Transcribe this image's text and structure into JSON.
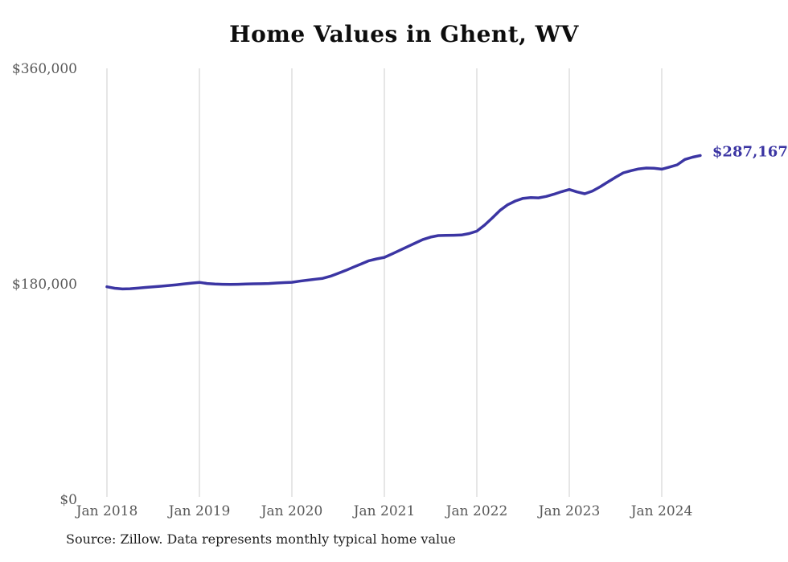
{
  "chart_data": {
    "type": "line",
    "title": "Home Values in Ghent, WV",
    "source_note": "Source: Zillow. Data represents monthly typical home value",
    "end_label": "$287,167",
    "end_value": 287167,
    "ylim": [
      0,
      360000
    ],
    "grid": "vertical-only",
    "legend": "none",
    "colors": {
      "line": "#3b35a3",
      "end_label": "#3b35a3",
      "grid": "#cccccc",
      "axis_labels": "#595959",
      "title": "#0d0d0d",
      "source": "#1f1f1f",
      "background": "#ffffff"
    },
    "y_ticks": [
      {
        "label": "$0",
        "value": 0
      },
      {
        "label": "$180,000",
        "value": 180000
      },
      {
        "label": "$360,000",
        "value": 360000
      }
    ],
    "x_tick_labels": [
      "Jan 2018",
      "Jan 2019",
      "Jan 2020",
      "Jan 2021",
      "Jan 2022",
      "Jan 2023",
      "Jan 2024"
    ],
    "x": [
      "2018-01",
      "2018-02",
      "2018-03",
      "2018-04",
      "2018-05",
      "2018-06",
      "2018-07",
      "2018-08",
      "2018-09",
      "2018-10",
      "2018-11",
      "2018-12",
      "2019-01",
      "2019-02",
      "2019-03",
      "2019-04",
      "2019-05",
      "2019-06",
      "2019-07",
      "2019-08",
      "2019-09",
      "2019-10",
      "2019-11",
      "2019-12",
      "2020-01",
      "2020-02",
      "2020-03",
      "2020-04",
      "2020-05",
      "2020-06",
      "2020-07",
      "2020-08",
      "2020-09",
      "2020-10",
      "2020-11",
      "2020-12",
      "2021-01",
      "2021-02",
      "2021-03",
      "2021-04",
      "2021-05",
      "2021-06",
      "2021-07",
      "2021-08",
      "2021-09",
      "2021-10",
      "2021-11",
      "2021-12",
      "2022-01",
      "2022-02",
      "2022-03",
      "2022-04",
      "2022-05",
      "2022-06",
      "2022-07",
      "2022-08",
      "2022-09",
      "2022-10",
      "2022-11",
      "2022-12",
      "2023-01",
      "2023-02",
      "2023-03",
      "2023-04",
      "2023-05",
      "2023-06",
      "2023-07",
      "2023-08",
      "2023-09",
      "2023-10",
      "2023-11",
      "2023-12",
      "2024-01",
      "2024-02",
      "2024-03",
      "2024-04",
      "2024-05",
      "2024-06"
    ],
    "series": [
      {
        "name": "Monthly typical home value",
        "values": [
          177500,
          176300,
          175700,
          175900,
          176400,
          177000,
          177500,
          178000,
          178600,
          179200,
          179900,
          180600,
          181200,
          180300,
          179800,
          179600,
          179500,
          179600,
          179800,
          180000,
          180100,
          180300,
          180700,
          181000,
          181300,
          182200,
          183000,
          183800,
          184600,
          186300,
          188700,
          191200,
          194000,
          196600,
          199300,
          200800,
          202100,
          205000,
          208000,
          211000,
          214000,
          217000,
          219000,
          220300,
          220500,
          220600,
          220800,
          222000,
          224000,
          229000,
          235000,
          241300,
          246000,
          249200,
          251400,
          252000,
          251800,
          253000,
          254800,
          257000,
          258800,
          256800,
          255200,
          257500,
          261000,
          265000,
          269000,
          272700,
          274500,
          276000,
          276700,
          276500,
          275800,
          277500,
          279400,
          283900,
          285800,
          287167
        ]
      }
    ]
  }
}
